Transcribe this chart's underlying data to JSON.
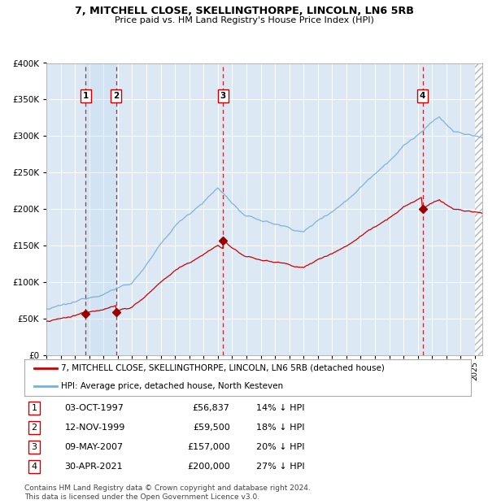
{
  "title1": "7, MITCHELL CLOSE, SKELLINGTHORPE, LINCOLN, LN6 5RB",
  "title2": "Price paid vs. HM Land Registry's House Price Index (HPI)",
  "purchases": [
    {
      "date_x": 1997.75,
      "price": 56837,
      "label": "1"
    },
    {
      "date_x": 1999.87,
      "price": 59500,
      "label": "2"
    },
    {
      "date_x": 2007.36,
      "price": 157000,
      "label": "3"
    },
    {
      "date_x": 2021.33,
      "price": 200000,
      "label": "4"
    }
  ],
  "table_rows": [
    {
      "num": "1",
      "date": "03-OCT-1997",
      "price": "£56,837",
      "hpi": "14% ↓ HPI"
    },
    {
      "num": "2",
      "date": "12-NOV-1999",
      "price": "£59,500",
      "hpi": "18% ↓ HPI"
    },
    {
      "num": "3",
      "date": "09-MAY-2007",
      "price": "£157,000",
      "hpi": "20% ↓ HPI"
    },
    {
      "num": "4",
      "date": "30-APR-2021",
      "price": "£200,000",
      "hpi": "27% ↓ HPI"
    }
  ],
  "footer": "Contains HM Land Registry data © Crown copyright and database right 2024.\nThis data is licensed under the Open Government Licence v3.0.",
  "legend_property": "7, MITCHELL CLOSE, SKELLINGTHORPE, LINCOLN, LN6 5RB (detached house)",
  "legend_hpi": "HPI: Average price, detached house, North Kesteven",
  "property_line_color": "#cc0000",
  "hpi_line_color": "#7bafd4",
  "vline_color": "#cc0000",
  "marker_color": "#990000",
  "plot_bg_color": "#dce9f5",
  "ylim": [
    0,
    400000
  ],
  "xlim_start": 1995.0,
  "xlim_end": 2025.5,
  "hatch_start": 2025.0
}
